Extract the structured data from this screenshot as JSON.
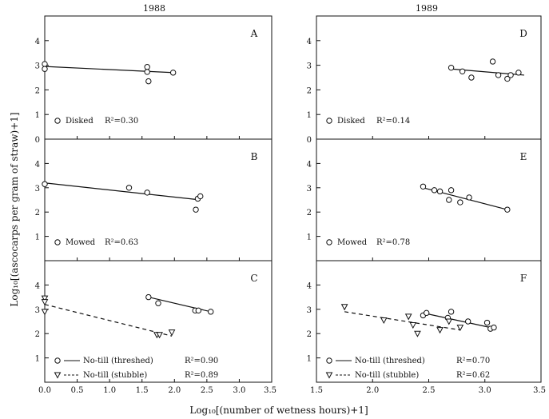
{
  "figure": {
    "ylabel": "Log₁₀[(ascocarps per gram of straw)+1]",
    "xlabel": "Log₁₀[(number of wetness hours)+1]",
    "columns": [
      {
        "title": "1988",
        "xlim": [
          0,
          3.5
        ],
        "xticks": [
          "0.0",
          "0.5",
          "1.0",
          "1.5",
          "2.0",
          "2.5",
          "3.0",
          "3.5"
        ]
      },
      {
        "title": "1989",
        "xlim": [
          1.5,
          3.5
        ],
        "xticks": [
          "1.5",
          "2.0",
          "2.5",
          "3.0",
          "3.5"
        ]
      }
    ],
    "yticks": [
      "0",
      "1",
      "2",
      "3",
      "4"
    ]
  },
  "chart_data": [
    {
      "panel": "A",
      "type": "scatter",
      "ylim": [
        0,
        5
      ],
      "xlim": [
        0,
        3.5
      ],
      "series": [
        {
          "name": "Disked",
          "marker": "circle",
          "x": [
            0.0,
            0.0,
            1.58,
            1.58,
            1.6,
            1.98
          ],
          "y": [
            3.05,
            2.85,
            2.93,
            2.73,
            2.35,
            2.7
          ],
          "fit": {
            "x": [
              0.0,
              2.0
            ],
            "y": [
              2.95,
              2.7
            ],
            "style": "solid"
          },
          "r2": "R²=0.30"
        }
      ]
    },
    {
      "panel": "B",
      "type": "scatter",
      "ylim": [
        0,
        5
      ],
      "xlim": [
        0,
        3.5
      ],
      "series": [
        {
          "name": "Mowed",
          "marker": "circle",
          "x": [
            0.0,
            1.3,
            1.58,
            2.33,
            2.36,
            2.4
          ],
          "y": [
            3.15,
            3.0,
            2.8,
            2.1,
            2.55,
            2.65
          ],
          "fit": {
            "x": [
              0.0,
              2.4
            ],
            "y": [
              3.2,
              2.5
            ],
            "style": "solid"
          },
          "r2": "R²=0.63"
        }
      ]
    },
    {
      "panel": "C",
      "type": "scatter",
      "ylim": [
        0,
        5
      ],
      "xlim": [
        0,
        3.5
      ],
      "series": [
        {
          "name": "No-till (threshed)",
          "marker": "circle",
          "x": [
            1.6,
            1.75,
            2.32,
            2.37,
            2.56
          ],
          "y": [
            3.5,
            3.25,
            2.95,
            2.95,
            2.9
          ],
          "fit": {
            "x": [
              1.6,
              2.56
            ],
            "y": [
              3.5,
              2.9
            ],
            "style": "solid"
          },
          "r2": "R²=0.90"
        },
        {
          "name": "No-till (stubble)",
          "marker": "triangle-down",
          "x": [
            0.0,
            0.0,
            0.0,
            1.73,
            1.77,
            1.96
          ],
          "y": [
            3.45,
            3.3,
            2.9,
            1.95,
            1.95,
            2.05
          ],
          "fit": {
            "x": [
              0.0,
              1.96
            ],
            "y": [
              3.2,
              1.9
            ],
            "style": "dashed"
          },
          "r2": "R²=0.89"
        }
      ]
    },
    {
      "panel": "D",
      "type": "scatter",
      "ylim": [
        0,
        5
      ],
      "xlim": [
        1.5,
        3.5
      ],
      "series": [
        {
          "name": "Disked",
          "marker": "circle",
          "x": [
            2.7,
            2.8,
            2.88,
            3.07,
            3.12,
            3.2,
            3.23,
            3.3
          ],
          "y": [
            2.9,
            2.75,
            2.5,
            3.15,
            2.6,
            2.45,
            2.6,
            2.7
          ],
          "fit": {
            "x": [
              2.7,
              3.35
            ],
            "y": [
              2.85,
              2.6
            ],
            "style": "solid"
          },
          "r2": "R²=0.14"
        }
      ]
    },
    {
      "panel": "E",
      "type": "scatter",
      "ylim": [
        0,
        5
      ],
      "xlim": [
        1.5,
        3.5
      ],
      "series": [
        {
          "name": "Mowed",
          "marker": "circle",
          "x": [
            2.45,
            2.55,
            2.6,
            2.68,
            2.7,
            2.78,
            2.86,
            3.2
          ],
          "y": [
            3.05,
            2.9,
            2.85,
            2.5,
            2.9,
            2.4,
            2.6,
            2.1
          ],
          "fit": {
            "x": [
              2.45,
              3.2
            ],
            "y": [
              3.0,
              2.1
            ],
            "style": "solid"
          },
          "r2": "R²=0.78"
        }
      ]
    },
    {
      "panel": "F",
      "type": "scatter",
      "ylim": [
        0,
        5
      ],
      "xlim": [
        1.5,
        3.5
      ],
      "series": [
        {
          "name": "No-till (threshed)",
          "marker": "circle",
          "x": [
            2.45,
            2.48,
            2.67,
            2.7,
            2.85,
            3.02,
            3.05,
            3.08
          ],
          "y": [
            2.75,
            2.85,
            2.65,
            2.9,
            2.5,
            2.45,
            2.2,
            2.25
          ],
          "fit": {
            "x": [
              2.45,
              3.1
            ],
            "y": [
              2.85,
              2.2
            ],
            "style": "solid"
          },
          "r2": "R²=0.70"
        },
        {
          "name": "No-till (stubble)",
          "marker": "triangle-down",
          "x": [
            1.75,
            2.1,
            2.32,
            2.36,
            2.4,
            2.6,
            2.68,
            2.78
          ],
          "y": [
            3.1,
            2.55,
            2.7,
            2.35,
            2.0,
            2.15,
            2.5,
            2.25
          ],
          "fit": {
            "x": [
              1.75,
              2.78
            ],
            "y": [
              2.9,
              2.15
            ],
            "style": "dashed"
          },
          "r2": "R²=0.62"
        }
      ]
    }
  ]
}
